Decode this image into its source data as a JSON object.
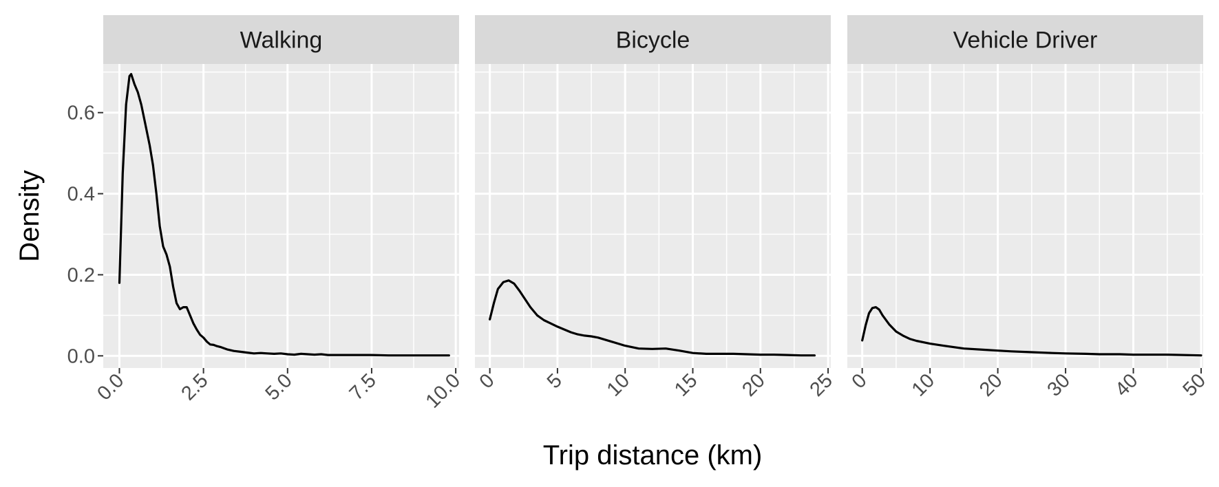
{
  "chart_data": {
    "type": "line",
    "xlabel": "Trip distance (km)",
    "ylabel": "Density",
    "ylim": [
      -0.03,
      0.72
    ],
    "y_ticks": [
      0.0,
      0.2,
      0.4,
      0.6
    ],
    "y_tick_labels": [
      "0.0",
      "0.2",
      "0.4",
      "0.6"
    ],
    "grid": true,
    "legend": "none",
    "facets": [
      {
        "title": "Walking",
        "xlim": [
          -0.48,
          10.1
        ],
        "x_ticks": [
          0,
          2.5,
          5,
          7.5,
          10
        ],
        "x_tick_labels": [
          "0.0",
          "2.5",
          "5.0",
          "7.5",
          "10.0"
        ],
        "x": [
          0,
          0.1,
          0.2,
          0.3,
          0.35,
          0.45,
          0.55,
          0.65,
          0.75,
          0.9,
          1.0,
          1.1,
          1.2,
          1.3,
          1.4,
          1.5,
          1.6,
          1.7,
          1.8,
          1.9,
          2.0,
          2.1,
          2.2,
          2.3,
          2.4,
          2.5,
          2.6,
          2.7,
          2.8,
          2.9,
          3.0,
          3.2,
          3.4,
          3.6,
          3.8,
          4.0,
          4.2,
          4.4,
          4.6,
          4.8,
          5.0,
          5.2,
          5.4,
          5.6,
          5.8,
          6.0,
          6.2,
          6.5,
          7.0,
          7.5,
          8.0,
          8.5,
          9.0,
          9.5,
          9.8
        ],
        "y": [
          0.18,
          0.45,
          0.62,
          0.69,
          0.695,
          0.67,
          0.65,
          0.62,
          0.58,
          0.52,
          0.47,
          0.4,
          0.32,
          0.27,
          0.25,
          0.22,
          0.17,
          0.13,
          0.115,
          0.12,
          0.12,
          0.1,
          0.08,
          0.065,
          0.052,
          0.045,
          0.035,
          0.028,
          0.027,
          0.024,
          0.022,
          0.016,
          0.012,
          0.01,
          0.008,
          0.006,
          0.007,
          0.006,
          0.005,
          0.006,
          0.004,
          0.003,
          0.005,
          0.004,
          0.003,
          0.004,
          0.002,
          0.002,
          0.002,
          0.002,
          0.001,
          0.001,
          0.001,
          0.001,
          0.001
        ]
      },
      {
        "title": "Bicycle",
        "xlim": [
          -1.1,
          25.2
        ],
        "x_ticks": [
          0,
          5,
          10,
          15,
          20,
          25
        ],
        "x_tick_labels": [
          "0",
          "5",
          "10",
          "15",
          "20",
          "25"
        ],
        "x": [
          0,
          0.3,
          0.6,
          1.0,
          1.4,
          1.8,
          2.2,
          2.6,
          3.0,
          3.5,
          4.0,
          4.5,
          5.0,
          5.5,
          6.0,
          6.5,
          7.0,
          7.5,
          8.0,
          9.0,
          10.0,
          11.0,
          12.0,
          13.0,
          14.0,
          15.0,
          16.0,
          17.0,
          18.0,
          19.0,
          20.0,
          21.0,
          22.0,
          23.0,
          24.0
        ],
        "y": [
          0.09,
          0.13,
          0.165,
          0.182,
          0.186,
          0.178,
          0.16,
          0.14,
          0.12,
          0.1,
          0.088,
          0.08,
          0.072,
          0.065,
          0.058,
          0.053,
          0.05,
          0.048,
          0.045,
          0.035,
          0.025,
          0.018,
          0.017,
          0.018,
          0.013,
          0.007,
          0.005,
          0.005,
          0.005,
          0.004,
          0.003,
          0.003,
          0.002,
          0.001,
          0.001
        ]
      },
      {
        "title": "Vehicle Driver",
        "xlim": [
          -2.2,
          50.3
        ],
        "x_ticks": [
          0,
          10,
          20,
          30,
          40,
          50
        ],
        "x_tick_labels": [
          "0",
          "10",
          "20",
          "30",
          "40",
          "50"
        ],
        "x": [
          0,
          0.5,
          1.0,
          1.5,
          2.0,
          2.5,
          3.0,
          4.0,
          5.0,
          6.0,
          7.0,
          8.0,
          10.0,
          12.0,
          15.0,
          18.0,
          20.0,
          22.0,
          25.0,
          28.0,
          30.0,
          33.0,
          35.0,
          38.0,
          40.0,
          45.0,
          50.0
        ],
        "y": [
          0.038,
          0.075,
          0.105,
          0.118,
          0.12,
          0.114,
          0.1,
          0.077,
          0.06,
          0.05,
          0.042,
          0.037,
          0.03,
          0.025,
          0.018,
          0.015,
          0.013,
          0.011,
          0.009,
          0.007,
          0.006,
          0.005,
          0.004,
          0.004,
          0.003,
          0.003,
          0.001
        ]
      }
    ]
  },
  "colors": {
    "panel_background": "#EBEBEB",
    "strip_background": "#D9D9D9",
    "grid_lines": "#FFFFFF",
    "line": "#000000",
    "tick_marks": "#333333"
  }
}
